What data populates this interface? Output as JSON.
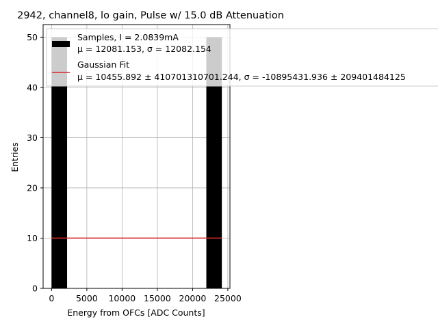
{
  "chart_data": {
    "type": "bar",
    "title": "2942, channel8, lo gain, Pulse w/ 15.0 dB Attenuation",
    "xlabel": "Energy from OFCs [ADC Counts]",
    "ylabel": "Entries",
    "xlim": [
      -1200,
      25300
    ],
    "ylim": [
      0,
      52.5
    ],
    "xticks": [
      0,
      5000,
      10000,
      15000,
      20000,
      25000
    ],
    "yticks": [
      0,
      10,
      20,
      30,
      40,
      50
    ],
    "grid": true,
    "legend_position": "top-right",
    "series": [
      {
        "name": "Samples, I = 2.0839mA",
        "stats_label": "μ = 12081.153, σ = 12082.154",
        "kind": "histogram",
        "color": "#000000",
        "bins": [
          {
            "x0": 0,
            "x1": 2200,
            "value": 50
          },
          {
            "x0": 21950,
            "x1": 24150,
            "value": 50
          }
        ]
      },
      {
        "name": "Gaussian Fit",
        "stats_label": "μ = 10455.892 ± 410701310701.244, σ = -10895431.936 ± 209401484125",
        "kind": "line",
        "color": "#d62728",
        "x": [
          0,
          24150
        ],
        "y": [
          10,
          10
        ]
      }
    ]
  }
}
